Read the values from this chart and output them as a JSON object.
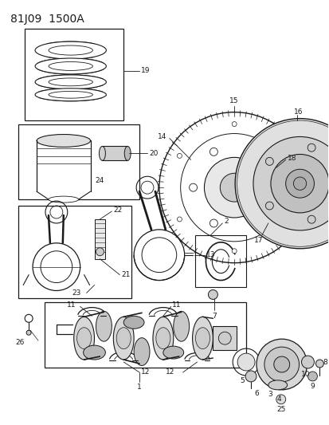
{
  "title": "81J09  1500A",
  "bg_color": "#ffffff",
  "line_color": "#1a1a1a",
  "title_fontsize": 10,
  "fig_w": 4.14,
  "fig_h": 5.33,
  "dpi": 100
}
